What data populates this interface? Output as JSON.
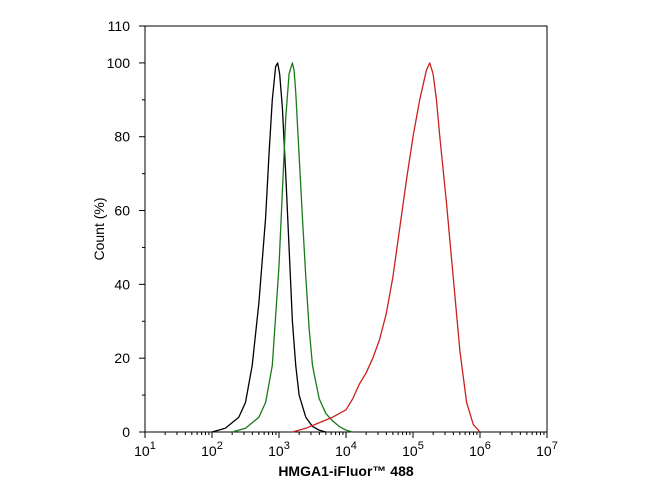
{
  "chart_data": {
    "type": "line",
    "xscale": "log",
    "xlim": [
      10,
      10000000
    ],
    "ylim": [
      0,
      110
    ],
    "xlabel": "HMGA1-iFluor™ 488",
    "ylabel": "Count  (%)",
    "grid": false,
    "x_ticks": [
      {
        "base": "10",
        "exp": "1",
        "value": 10
      },
      {
        "base": "10",
        "exp": "2",
        "value": 100
      },
      {
        "base": "10",
        "exp": "3",
        "value": 1000
      },
      {
        "base": "10",
        "exp": "4",
        "value": 10000
      },
      {
        "base": "10",
        "exp": "5",
        "value": 100000
      },
      {
        "base": "10",
        "exp": "6",
        "value": 1000000
      },
      {
        "base": "10",
        "exp": "7",
        "value": 10000000
      }
    ],
    "y_ticks": [
      {
        "label": "0",
        "value": 0
      },
      {
        "label": "20",
        "value": 20
      },
      {
        "label": "40",
        "value": 40
      },
      {
        "label": "60",
        "value": 60
      },
      {
        "label": "80",
        "value": 80
      },
      {
        "label": "100",
        "value": 100
      },
      {
        "label": "110",
        "value": 110
      }
    ],
    "series": [
      {
        "name": "black",
        "color": "#000000",
        "points": [
          [
            100,
            0
          ],
          [
            158,
            1
          ],
          [
            251,
            4
          ],
          [
            316,
            8
          ],
          [
            398,
            18
          ],
          [
            501,
            35
          ],
          [
            631,
            58
          ],
          [
            708,
            75
          ],
          [
            794,
            90
          ],
          [
            891,
            99
          ],
          [
            955,
            100
          ],
          [
            1023,
            97
          ],
          [
            1122,
            88
          ],
          [
            1259,
            70
          ],
          [
            1413,
            50
          ],
          [
            1585,
            30
          ],
          [
            1778,
            18
          ],
          [
            1995,
            10
          ],
          [
            2512,
            4
          ],
          [
            3162,
            1.5
          ],
          [
            3981,
            0.5
          ],
          [
            5012,
            0
          ]
        ]
      },
      {
        "name": "green",
        "color": "#1a7a1a",
        "points": [
          [
            200,
            0
          ],
          [
            316,
            1
          ],
          [
            501,
            4
          ],
          [
            631,
            8
          ],
          [
            794,
            18
          ],
          [
            1000,
            45
          ],
          [
            1122,
            65
          ],
          [
            1259,
            85
          ],
          [
            1413,
            97
          ],
          [
            1585,
            100
          ],
          [
            1679,
            98
          ],
          [
            1778,
            92
          ],
          [
            1995,
            75
          ],
          [
            2239,
            58
          ],
          [
            2512,
            42
          ],
          [
            2818,
            28
          ],
          [
            3162,
            18
          ],
          [
            3981,
            9
          ],
          [
            5012,
            5
          ],
          [
            6310,
            3
          ],
          [
            7943,
            1.5
          ],
          [
            10000,
            0.5
          ],
          [
            12589,
            0
          ]
        ]
      },
      {
        "name": "red",
        "color": "#cc1f1f",
        "points": [
          [
            1585,
            0
          ],
          [
            2512,
            1
          ],
          [
            3981,
            2.5
          ],
          [
            6310,
            4
          ],
          [
            10000,
            6
          ],
          [
            12589,
            9
          ],
          [
            15849,
            13
          ],
          [
            19953,
            16
          ],
          [
            25119,
            20
          ],
          [
            31623,
            25
          ],
          [
            39811,
            32
          ],
          [
            50119,
            42
          ],
          [
            63096,
            55
          ],
          [
            79433,
            68
          ],
          [
            100000,
            80
          ],
          [
            125893,
            90
          ],
          [
            158489,
            98
          ],
          [
            177828,
            100
          ],
          [
            199526,
            97
          ],
          [
            223872,
            90
          ],
          [
            251189,
            80
          ],
          [
            316228,
            62
          ],
          [
            398107,
            42
          ],
          [
            501187,
            22
          ],
          [
            630957,
            8
          ],
          [
            794328,
            2
          ],
          [
            1000000,
            0
          ]
        ]
      }
    ]
  }
}
